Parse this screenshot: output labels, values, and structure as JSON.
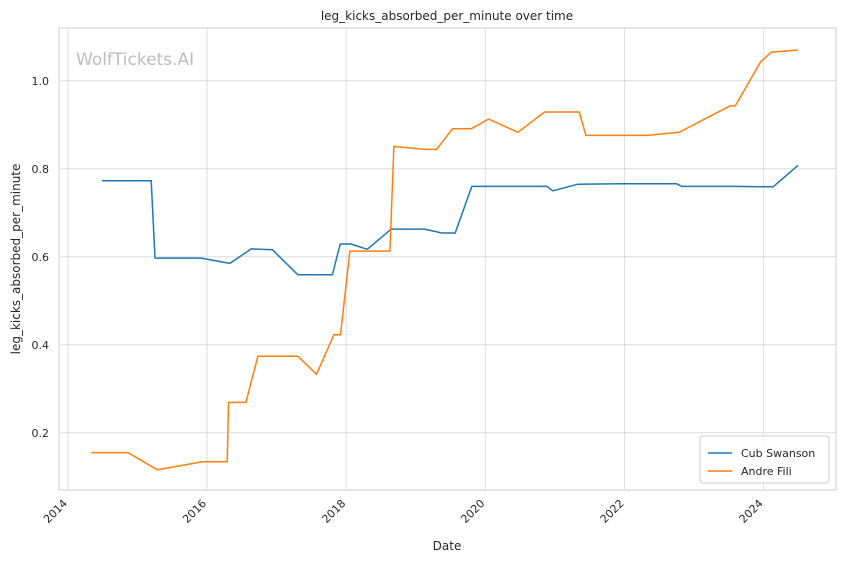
{
  "chart_data": {
    "type": "line",
    "title": "leg_kicks_absorbed_per_minute over time",
    "xlabel": "Date",
    "ylabel": "leg_kicks_absorbed_per_minute",
    "watermark": "WolfTickets.AI",
    "x_range": [
      "2013-11-15",
      "2025-01-15"
    ],
    "ylim": [
      0.07,
      1.12
    ],
    "x_ticks": [
      "2014",
      "2016",
      "2018",
      "2020",
      "2022",
      "2024"
    ],
    "y_ticks": [
      "0.2",
      "0.4",
      "0.6",
      "0.8",
      "1.0"
    ],
    "grid": true,
    "legend_position": "lower right",
    "series": [
      {
        "name": "Cub Swanson",
        "color": "#1f77b4",
        "points": [
          [
            "2014-06-28",
            0.773
          ],
          [
            "2015-03-14",
            0.773
          ],
          [
            "2015-04-03",
            0.597
          ],
          [
            "2015-12-01",
            0.597
          ],
          [
            "2016-04-30",
            0.585
          ],
          [
            "2016-08-20",
            0.618
          ],
          [
            "2016-12-10",
            0.616
          ],
          [
            "2017-04-22",
            0.559
          ],
          [
            "2017-10-20",
            0.559
          ],
          [
            "2017-11-30",
            0.629
          ],
          [
            "2018-01-25",
            0.629
          ],
          [
            "2018-04-21",
            0.617
          ],
          [
            "2018-08-25",
            0.663
          ],
          [
            "2019-02-17",
            0.663
          ],
          [
            "2019-05-18",
            0.654
          ],
          [
            "2019-07-27",
            0.654
          ],
          [
            "2019-10-22",
            0.76
          ],
          [
            "2020-11-20",
            0.76
          ],
          [
            "2020-12-20",
            0.75
          ],
          [
            "2021-05-01",
            0.765
          ],
          [
            "2021-12-15",
            0.766
          ],
          [
            "2022-10-01",
            0.766
          ],
          [
            "2022-10-29",
            0.76
          ],
          [
            "2023-08-01",
            0.76
          ],
          [
            "2024-02-20",
            0.759
          ],
          [
            "2024-06-30",
            0.808
          ]
        ]
      },
      {
        "name": "Andre Fili",
        "color": "#ff7f0e",
        "points": [
          [
            "2014-05-03",
            0.155
          ],
          [
            "2014-11-12",
            0.155
          ],
          [
            "2015-04-15",
            0.116
          ],
          [
            "2015-12-10",
            0.134
          ],
          [
            "2016-04-16",
            0.134
          ],
          [
            "2016-04-23",
            0.269
          ],
          [
            "2016-07-23",
            0.269
          ],
          [
            "2016-09-24",
            0.374
          ],
          [
            "2017-04-22",
            0.374
          ],
          [
            "2017-07-29",
            0.333
          ],
          [
            "2017-10-28",
            0.423
          ],
          [
            "2017-12-02",
            0.423
          ],
          [
            "2018-01-20",
            0.613
          ],
          [
            "2018-08-18",
            0.613
          ],
          [
            "2018-09-08",
            0.851
          ],
          [
            "2019-02-17",
            0.844
          ],
          [
            "2019-04-20",
            0.844
          ],
          [
            "2019-07-13",
            0.891
          ],
          [
            "2019-10-18",
            0.891
          ],
          [
            "2020-01-18",
            0.913
          ],
          [
            "2020-06-20",
            0.883
          ],
          [
            "2020-11-07",
            0.929
          ],
          [
            "2021-05-08",
            0.929
          ],
          [
            "2021-06-12",
            0.876
          ],
          [
            "2022-04-30",
            0.876
          ],
          [
            "2022-10-15",
            0.883
          ],
          [
            "2023-07-08",
            0.943
          ],
          [
            "2023-08-05",
            0.943
          ],
          [
            "2023-12-16",
            1.043
          ],
          [
            "2024-02-10",
            1.065
          ],
          [
            "2024-06-29",
            1.07
          ]
        ]
      }
    ]
  }
}
